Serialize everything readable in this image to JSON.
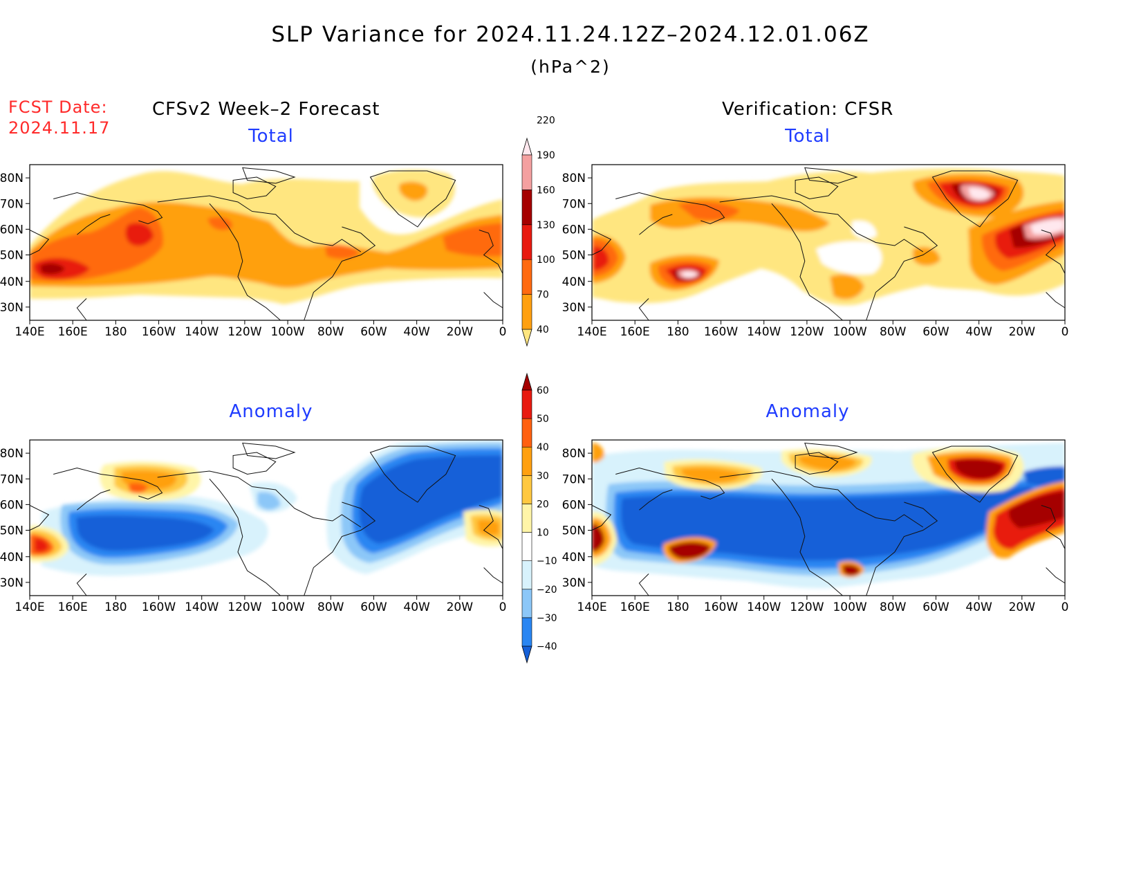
{
  "title": "SLP Variance for 2024.11.24.12Z–2024.12.01.06Z",
  "units": "(hPa^2)",
  "fcst_date": {
    "label": "FCST Date:",
    "value": "2024.11.17"
  },
  "columns": {
    "forecast": "CFSv2 Week–2 Forecast",
    "verification": "Verification: CFSR"
  },
  "panel_titles": {
    "total": "Total",
    "anomaly": "Anomaly"
  },
  "axes": {
    "lon_labels": [
      "140E",
      "160E",
      "180",
      "160W",
      "140W",
      "120W",
      "100W",
      "80W",
      "60W",
      "40W",
      "20W",
      "0"
    ],
    "lat_labels": [
      "30N",
      "40N",
      "50N",
      "60N",
      "70N",
      "80N"
    ]
  },
  "colorbars": {
    "total": {
      "labels": [
        "40",
        "70",
        "100",
        "130",
        "160",
        "190",
        "220"
      ],
      "colors": [
        "#ffe680",
        "#ffa010",
        "#ff6a10",
        "#e81a10",
        "#a50000",
        "#f4a0a0",
        "#ffe8ee"
      ]
    },
    "anomaly": {
      "labels": [
        "−40",
        "−30",
        "−20",
        "−10",
        "10",
        "20",
        "30",
        "40",
        "50",
        "60"
      ],
      "colors": [
        "#1560d8",
        "#2a86f2",
        "#8cc7f8",
        "#d8f2fc",
        "#ffffff",
        "#fff5a8",
        "#ffc840",
        "#ffa010",
        "#ff6010",
        "#e81a10",
        "#a50000"
      ]
    }
  }
}
